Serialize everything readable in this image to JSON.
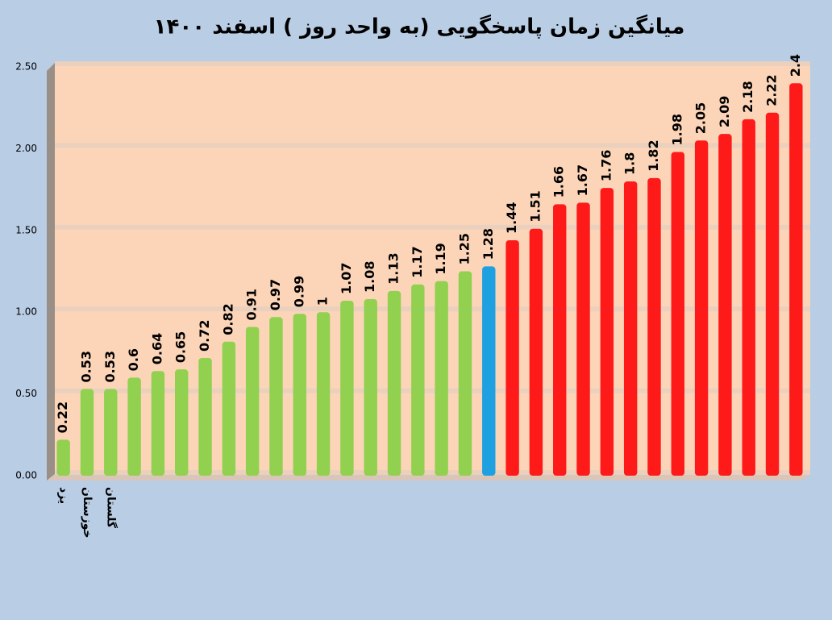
{
  "chart_data": {
    "type": "bar",
    "title": "میانگین زمان پاسخگویی (به واحد روز ) اسفند ۱۴۰۰",
    "categories": [
      "یزد",
      "خوزستان",
      "گلستان",
      null,
      null,
      null,
      null,
      null,
      null,
      null,
      null,
      null,
      null,
      null,
      null,
      null,
      null,
      null,
      null,
      null,
      null,
      null,
      null,
      null,
      null,
      null,
      null,
      null,
      null,
      null,
      null,
      null
    ],
    "values": [
      0.22,
      0.53,
      0.53,
      0.6,
      0.64,
      0.65,
      0.72,
      0.82,
      0.91,
      0.97,
      0.99,
      1.0,
      1.07,
      1.08,
      1.13,
      1.17,
      1.19,
      1.25,
      1.28,
      1.44,
      1.51,
      1.66,
      1.67,
      1.76,
      1.8,
      1.82,
      1.98,
      2.05,
      2.09,
      2.18,
      2.22,
      2.4
    ],
    "colors": [
      "#92d050",
      "#92d050",
      "#92d050",
      "#92d050",
      "#92d050",
      "#92d050",
      "#92d050",
      "#92d050",
      "#92d050",
      "#92d050",
      "#92d050",
      "#92d050",
      "#92d050",
      "#92d050",
      "#92d050",
      "#92d050",
      "#92d050",
      "#92d050",
      "#1fa0e0",
      "#ff1a1a",
      "#ff1a1a",
      "#ff1a1a",
      "#ff1a1a",
      "#ff1a1a",
      "#ff1a1a",
      "#ff1a1a",
      "#ff1a1a",
      "#ff1a1a",
      "#ff1a1a",
      "#ff1a1a",
      "#ff1a1a",
      "#ff1a1a"
    ],
    "ylim": [
      0,
      2.5
    ],
    "yticks": [
      {
        "value": 0,
        "label": "0.00"
      },
      {
        "value": 0.5,
        "label": "0.50"
      },
      {
        "value": 1,
        "label": "1.00"
      },
      {
        "value": 1.5,
        "label": "1.50"
      },
      {
        "value": 2,
        "label": "2.00"
      },
      {
        "value": 2.5,
        "label": "2.50"
      }
    ],
    "grid": true
  }
}
